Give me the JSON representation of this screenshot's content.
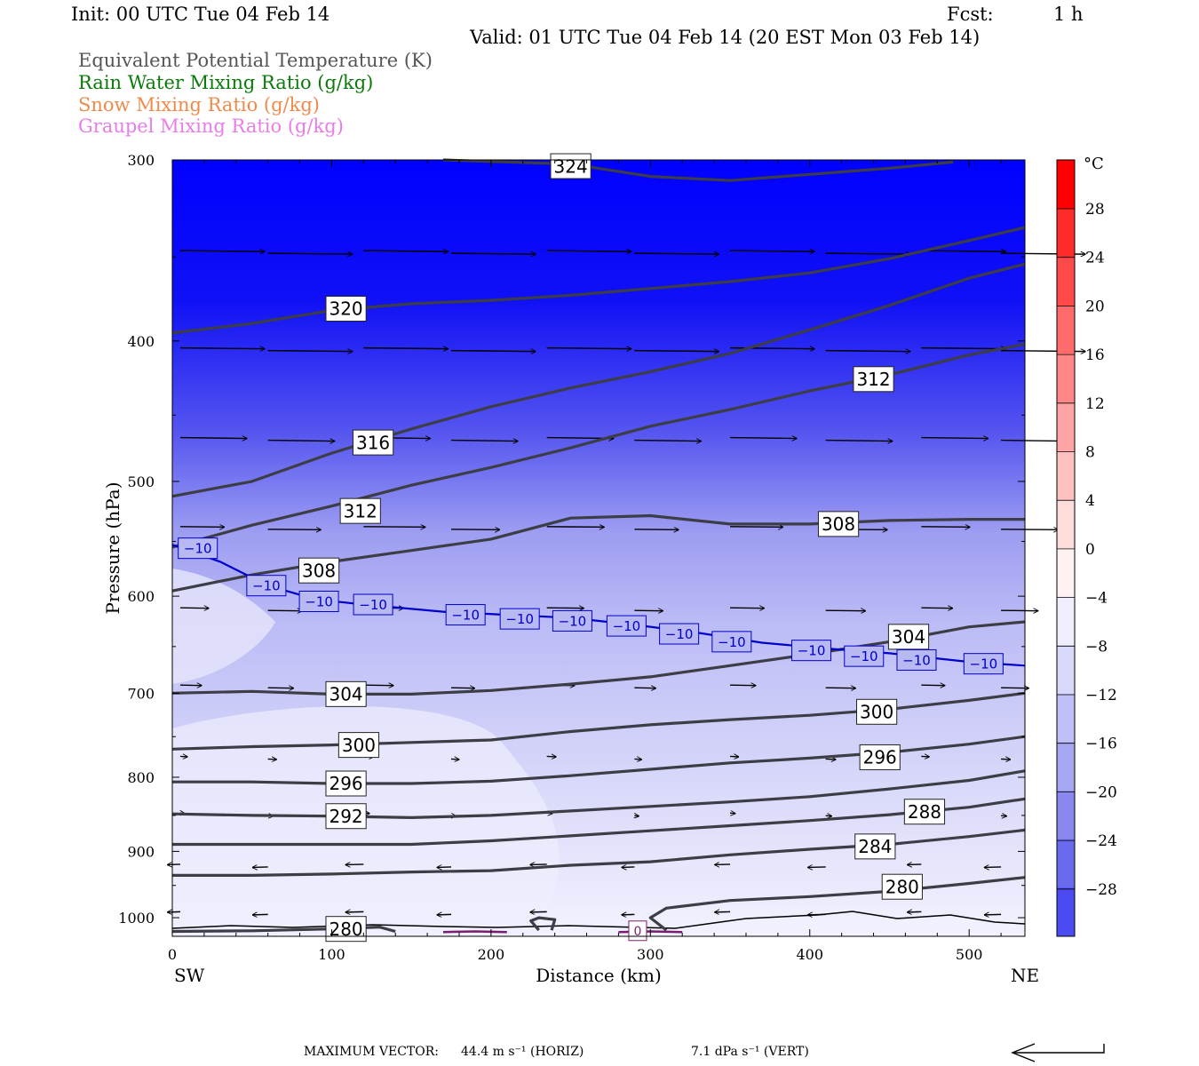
{
  "header": {
    "init": "Init: 00 UTC Tue 04 Feb 14",
    "fcst_label": "Fcst:",
    "fcst_value": "1 h",
    "valid": "Valid: 01 UTC Tue 04 Feb 14 (20 EST Mon 03 Feb 14)"
  },
  "legend": [
    {
      "label": "Equivalent Potential Temperature (K)",
      "color": "#555555"
    },
    {
      "label": "Rain Water Mixing Ratio (g/kg)",
      "color": "#0a7a0a"
    },
    {
      "label": "Snow Mixing Ratio (g/kg)",
      "color": "#f08a4b"
    },
    {
      "label": "Graupel Mixing Ratio (g/kg)",
      "color": "#e87ce8"
    }
  ],
  "chart_data": {
    "type": "contour",
    "xlabel": "Distance (km)",
    "ylabel": "Pressure (hPa)",
    "x_left_label": "SW",
    "x_right_label": "NE",
    "xlim": [
      0,
      535
    ],
    "ylim": [
      1030,
      300
    ],
    "y_log": true,
    "xticks": [
      0,
      100,
      200,
      300,
      400,
      500
    ],
    "yticks": [
      300,
      400,
      500,
      600,
      700,
      800,
      900,
      1000
    ],
    "temperature_shading": {
      "unit": "°C",
      "colorbar_labels": [
        28,
        24,
        20,
        16,
        12,
        8,
        4,
        0,
        -4,
        -8,
        -12,
        -16,
        -20,
        -24,
        -28
      ]
    },
    "theta_e_contours": [
      {
        "value": 324,
        "points": [
          [
            170,
            300
          ],
          [
            250,
            302
          ],
          [
            300,
            308
          ],
          [
            350,
            310
          ],
          [
            400,
            307
          ],
          [
            450,
            304
          ],
          [
            490,
            301
          ]
        ],
        "labels": [
          [
            250,
            303
          ]
        ]
      },
      {
        "value": 320,
        "points": [
          [
            0,
            395
          ],
          [
            50,
            389
          ],
          [
            100,
            381
          ],
          [
            150,
            377
          ],
          [
            200,
            375
          ],
          [
            250,
            372
          ],
          [
            300,
            368
          ],
          [
            350,
            364
          ],
          [
            400,
            359
          ],
          [
            450,
            351
          ],
          [
            500,
            341
          ],
          [
            535,
            334
          ]
        ],
        "labels": [
          [
            109,
            380
          ]
        ]
      },
      {
        "value": 316,
        "points": [
          [
            0,
            512
          ],
          [
            50,
            500
          ],
          [
            100,
            478
          ],
          [
            150,
            460
          ],
          [
            200,
            444
          ],
          [
            250,
            431
          ],
          [
            300,
            420
          ],
          [
            350,
            408
          ],
          [
            400,
            393
          ],
          [
            450,
            378
          ],
          [
            500,
            362
          ],
          [
            535,
            354
          ]
        ],
        "labels": [
          [
            126,
            470
          ]
        ]
      },
      {
        "value": 312,
        "points": [
          [
            0,
            555
          ],
          [
            50,
            536
          ],
          [
            100,
            520
          ],
          [
            150,
            503
          ],
          [
            200,
            489
          ],
          [
            250,
            474
          ],
          [
            300,
            458
          ],
          [
            350,
            446
          ],
          [
            400,
            433
          ],
          [
            450,
            422
          ],
          [
            500,
            409
          ],
          [
            535,
            402
          ]
        ],
        "labels": [
          [
            118,
            524
          ],
          [
            440,
            425
          ]
        ]
      },
      {
        "value": 308,
        "points": [
          [
            0,
            595
          ],
          [
            50,
            580
          ],
          [
            100,
            568
          ],
          [
            150,
            558
          ],
          [
            200,
            548
          ],
          [
            250,
            530
          ],
          [
            300,
            528
          ],
          [
            350,
            535
          ],
          [
            400,
            535
          ],
          [
            450,
            532
          ],
          [
            500,
            531
          ],
          [
            535,
            531
          ]
        ],
        "labels": [
          [
            92,
            576
          ],
          [
            418,
            535
          ]
        ]
      },
      {
        "value": 304,
        "points": [
          [
            0,
            700
          ],
          [
            50,
            698
          ],
          [
            100,
            701
          ],
          [
            150,
            701
          ],
          [
            200,
            697
          ],
          [
            250,
            690
          ],
          [
            300,
            682
          ],
          [
            350,
            670
          ],
          [
            400,
            658
          ],
          [
            450,
            645
          ],
          [
            500,
            630
          ],
          [
            535,
            625
          ]
        ],
        "labels": [
          [
            109,
            701
          ],
          [
            462,
            640
          ]
        ]
      },
      {
        "value": 300,
        "points": [
          [
            0,
            765
          ],
          [
            50,
            762
          ],
          [
            100,
            760
          ],
          [
            150,
            757
          ],
          [
            200,
            754
          ],
          [
            250,
            744
          ],
          [
            300,
            736
          ],
          [
            350,
            730
          ],
          [
            400,
            725
          ],
          [
            450,
            718
          ],
          [
            500,
            708
          ],
          [
            535,
            700
          ]
        ],
        "labels": [
          [
            117,
            760
          ],
          [
            442,
            721
          ]
        ]
      },
      {
        "value": 296,
        "points": [
          [
            0,
            806
          ],
          [
            50,
            806
          ],
          [
            100,
            808
          ],
          [
            150,
            808
          ],
          [
            200,
            805
          ],
          [
            250,
            798
          ],
          [
            300,
            790
          ],
          [
            350,
            782
          ],
          [
            400,
            776
          ],
          [
            450,
            769
          ],
          [
            500,
            759
          ],
          [
            535,
            750
          ]
        ],
        "labels": [
          [
            109,
            808
          ],
          [
            444,
            775
          ]
        ]
      },
      {
        "value": 292,
        "points": [
          [
            0,
            848
          ],
          [
            50,
            850
          ],
          [
            100,
            851
          ],
          [
            150,
            853
          ],
          [
            200,
            850
          ],
          [
            250,
            844
          ],
          [
            300,
            838
          ],
          [
            350,
            832
          ],
          [
            400,
            825
          ],
          [
            450,
            815
          ],
          [
            500,
            804
          ],
          [
            535,
            792
          ]
        ],
        "labels": [
          [
            109,
            851
          ]
        ]
      },
      {
        "value": 288,
        "points": [
          [
            0,
            890
          ],
          [
            50,
            890
          ],
          [
            100,
            890
          ],
          [
            150,
            890
          ],
          [
            200,
            885
          ],
          [
            250,
            878
          ],
          [
            300,
            871
          ],
          [
            350,
            864
          ],
          [
            400,
            857
          ],
          [
            450,
            849
          ],
          [
            500,
            839
          ],
          [
            535,
            828
          ]
        ],
        "labels": [
          [
            472,
            845
          ]
        ]
      },
      {
        "value": 284,
        "points": [
          [
            0,
            935
          ],
          [
            50,
            935
          ],
          [
            100,
            933
          ],
          [
            150,
            930
          ],
          [
            200,
            928
          ],
          [
            250,
            920
          ],
          [
            300,
            915
          ],
          [
            350,
            905
          ],
          [
            400,
            897
          ],
          [
            450,
            890
          ],
          [
            500,
            879
          ],
          [
            535,
            870
          ]
        ],
        "labels": [
          [
            441,
            893
          ]
        ]
      },
      {
        "value": 280,
        "points": [
          [
            0,
            1022
          ],
          [
            50,
            1021
          ],
          [
            100,
            1018
          ],
          [
            130,
            1015
          ],
          [
            140,
            1022
          ]
        ],
        "labels": [
          [
            109,
            1018
          ]
        ]
      },
      {
        "value": 280,
        "points": [
          [
            310,
            1020
          ],
          [
            300,
            1000
          ],
          [
            310,
            985
          ],
          [
            350,
            973
          ],
          [
            400,
            967
          ],
          [
            450,
            959
          ],
          [
            500,
            947
          ],
          [
            535,
            938
          ]
        ],
        "labels": [
          [
            458,
            952
          ]
        ]
      },
      {
        "value": 280,
        "points": [
          [
            230,
            1020
          ],
          [
            225,
            1005
          ],
          [
            230,
            1000
          ],
          [
            240,
            1003
          ],
          [
            238,
            1020
          ]
        ],
        "labels": []
      }
    ],
    "isotherm_minus10": {
      "value": -10,
      "points": [
        [
          0,
          553
        ],
        [
          30,
          568
        ],
        [
          60,
          590
        ],
        [
          90,
          603
        ],
        [
          120,
          608
        ],
        [
          170,
          615
        ],
        [
          210,
          618
        ],
        [
          250,
          621
        ],
        [
          290,
          628
        ],
        [
          330,
          636
        ],
        [
          370,
          646
        ],
        [
          410,
          652
        ],
        [
          450,
          657
        ],
        [
          500,
          666
        ],
        [
          535,
          670
        ]
      ],
      "labels": [
        [
          16,
          556
        ],
        [
          59,
          590
        ],
        [
          92,
          605
        ],
        [
          126,
          608
        ],
        [
          184,
          618
        ],
        [
          218,
          622
        ],
        [
          251,
          624
        ],
        [
          285,
          629
        ],
        [
          318,
          637
        ],
        [
          351,
          645
        ],
        [
          401,
          654
        ],
        [
          434,
          660
        ],
        [
          467,
          664
        ],
        [
          509,
          668
        ]
      ]
    },
    "graupel_contours": [
      {
        "value": 0,
        "points": [
          [
            170,
            1023
          ],
          [
            190,
            1022
          ],
          [
            210,
            1023
          ]
        ],
        "labels": []
      },
      {
        "value": 0,
        "points": [
          [
            280,
            1023
          ],
          [
            300,
            1022
          ],
          [
            320,
            1023
          ]
        ],
        "labels": [
          [
            292,
            1021
          ]
        ]
      }
    ],
    "wind_vectors": {
      "pressure_levels": [
        347,
        405,
        467,
        538,
        612,
        692,
        775,
        848,
        920,
        992
      ],
      "max_horizontal": "44.4 m s⁻¹ (HORIZ)",
      "max_vertical": "7.1 dPa s⁻¹ (VERT)",
      "title": "MAXIMUM VECTOR:"
    }
  },
  "footer": {
    "max_vector_label": "MAXIMUM VECTOR:",
    "horiz": "44.4 m s⁻¹ (HORIZ)",
    "vert": "7.1 dPa s⁻¹ (VERT)"
  }
}
